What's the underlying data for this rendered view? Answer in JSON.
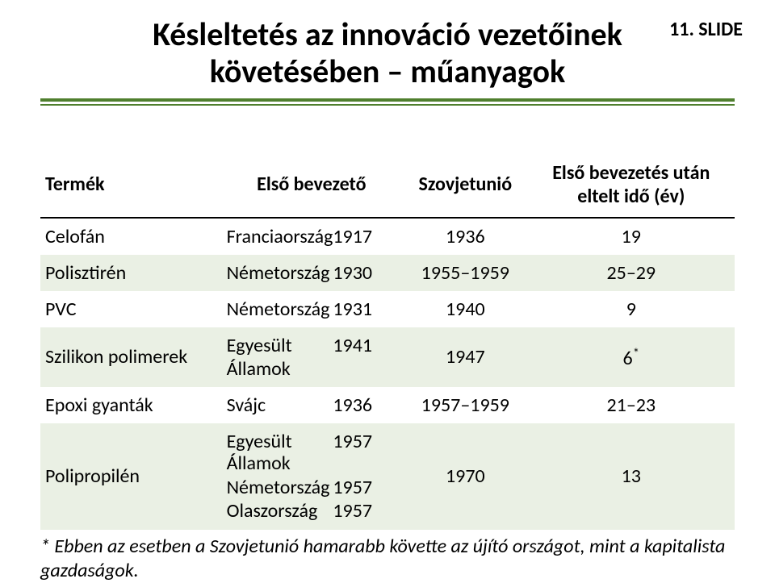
{
  "slide_number": "11. SLIDE",
  "title_line1": "Késleltetés az innováció vezetőinek",
  "title_line2": "követésében – műanyagok",
  "headers": {
    "product": "Termék",
    "first_intro": "Első bevezető",
    "ussr": "Szovjetunió",
    "elapsed_l1": "Első bevezetés után",
    "elapsed_l2": "eltelt idő (év)"
  },
  "rows": [
    {
      "product": "Celofán",
      "intro": "Franciaország",
      "intro_year": "1917",
      "ussr": "1936",
      "elapsed": "19",
      "even": false
    },
    {
      "product": "Polisztirén",
      "intro": "Németország",
      "intro_year": "1930",
      "ussr": "1955–1959",
      "elapsed": "25–29",
      "even": true
    },
    {
      "product": "PVC",
      "intro": "Németország",
      "intro_year": "1931",
      "ussr": "1940",
      "elapsed": "9",
      "even": false
    },
    {
      "product": "Szilikon polimerek",
      "intro": "Egyesült Államok",
      "intro_year": "1941",
      "ussr": "1947",
      "elapsed": "6",
      "elapsed_sup": "*",
      "even": true
    },
    {
      "product": "Epoxi gyanták",
      "intro": "Svájc",
      "intro_year": "1936",
      "ussr": "1957–1959",
      "elapsed": "21–23",
      "even": false
    }
  ],
  "poly": {
    "product": "Polipropilén",
    "intro1": "Egyesült Államok",
    "intro1_year": "1957",
    "intro2": "Németország",
    "intro2_year": "1957",
    "intro3": "Olaszország",
    "intro3_year": "1957",
    "ussr": "1970",
    "elapsed": "13",
    "even": true
  },
  "footnote": "* Ebben az esetben a Szovjetunió hamarabb követte az újító országot, mint a kapitalista gazdaságok.",
  "colors": {
    "rule": "#4f7f2e",
    "row_even_bg": "#eaf0e4",
    "text": "#000000",
    "bg": "#ffffff"
  }
}
